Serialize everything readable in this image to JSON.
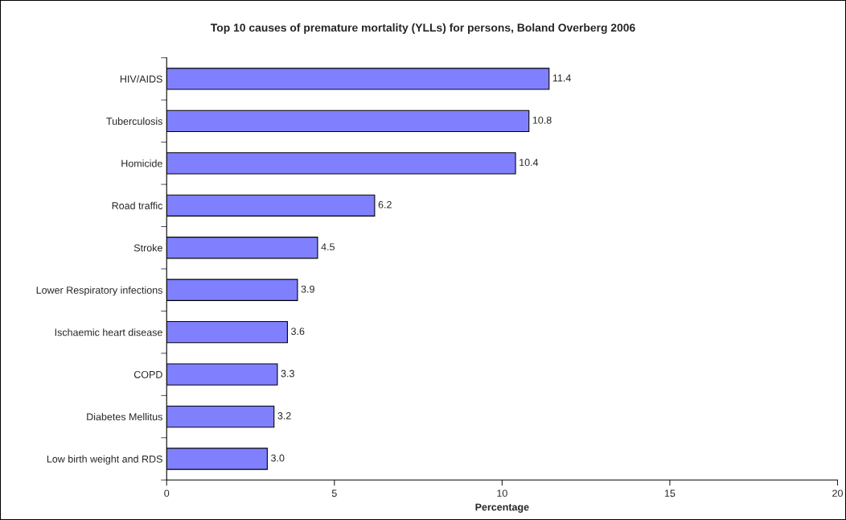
{
  "chart_data": {
    "type": "bar",
    "orientation": "horizontal",
    "title": "Top 10 causes of premature mortality (YLLs) for persons, Boland Overberg 2006",
    "xlabel": "Percentage",
    "categories": [
      "HIV/AIDS",
      "Tuberculosis",
      "Homicide",
      "Road traffic",
      "Stroke",
      "Lower Respiratory infections",
      "Ischaemic heart disease",
      "COPD",
      "Diabetes Mellitus",
      "Low birth weight and RDS"
    ],
    "values": [
      11.4,
      10.8,
      10.4,
      6.2,
      4.5,
      3.9,
      3.6,
      3.3,
      3.2,
      3.0
    ],
    "value_labels": [
      "11.4",
      "10.8",
      "10.4",
      "6.2",
      "4.5",
      "3.9",
      "3.6",
      "3.3",
      "3.2",
      "3.0"
    ],
    "color": "#8080ff",
    "xlim": [
      0,
      20
    ],
    "xticks": [
      0,
      5,
      10,
      15,
      20
    ],
    "grid": false,
    "legend": false
  }
}
